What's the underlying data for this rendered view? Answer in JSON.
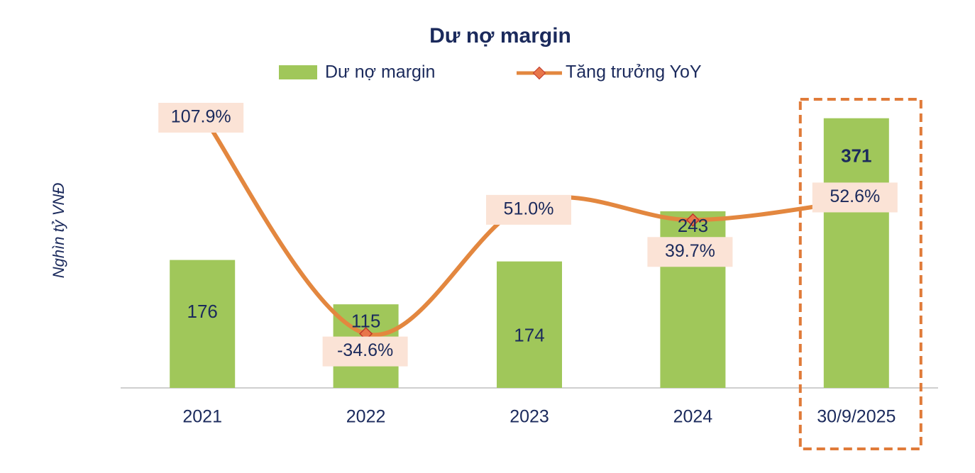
{
  "chart_data": {
    "type": "bar-line",
    "title": "Dư nợ margin",
    "y_label": "Nghìn tỷ VNĐ",
    "categories": [
      "2021",
      "2022",
      "2023",
      "2024",
      "30/9/2025"
    ],
    "series": [
      {
        "name": "Dư nợ margin",
        "type": "bar",
        "color": "#a0c75a",
        "values": [
          176,
          115,
          174,
          243,
          371
        ]
      },
      {
        "name": "Tăng trưởng YoY",
        "type": "line",
        "axis": "y2",
        "color": "#e3873f",
        "marker_color": "#e8764a",
        "values": [
          107.9,
          -34.6,
          51.0,
          39.7,
          52.6
        ],
        "value_labels": [
          "107.9%",
          "-34.6%",
          "51.0%",
          "39.7%",
          "52.6%"
        ]
      }
    ],
    "ylim": [
      0,
      400
    ],
    "y2lim": [
      -70,
      120
    ],
    "highlight_category": 4,
    "highlight_color": "#e07b39"
  }
}
